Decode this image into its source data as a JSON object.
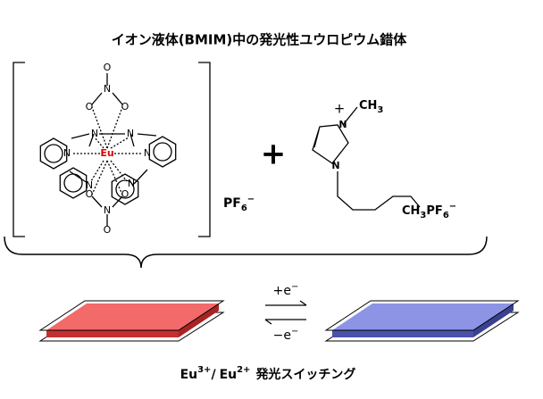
{
  "title": "イオン液体(BMIM)中の発光性ユウロピウム錯体",
  "complex": {
    "metal": "Eu",
    "atoms": [
      "O",
      "N",
      "O",
      "O",
      "N",
      "N",
      "N",
      "N",
      "N",
      "N",
      "O",
      "N",
      "O",
      "O"
    ]
  },
  "anion": {
    "formula": "PF",
    "subscript": "6",
    "charge": "−"
  },
  "plus": "+",
  "cation": {
    "charge": "+",
    "methyl": "CH",
    "methyl_sub": "3",
    "atoms": [
      "N",
      "N"
    ],
    "tail": "CH",
    "tail_sub": "3",
    "tail_anion": "PF",
    "tail_anion_sub": "6",
    "tail_charge": "−"
  },
  "reduction": {
    "label": "+e",
    "charge": "−"
  },
  "oxidation": {
    "label": "−e",
    "charge": "−"
  },
  "caption": {
    "ion1": "Eu",
    "ion1_charge": "3+",
    "sep": "/",
    "ion2": "Eu",
    "ion2_charge": "2+",
    "text": "発光スイッチング"
  }
}
